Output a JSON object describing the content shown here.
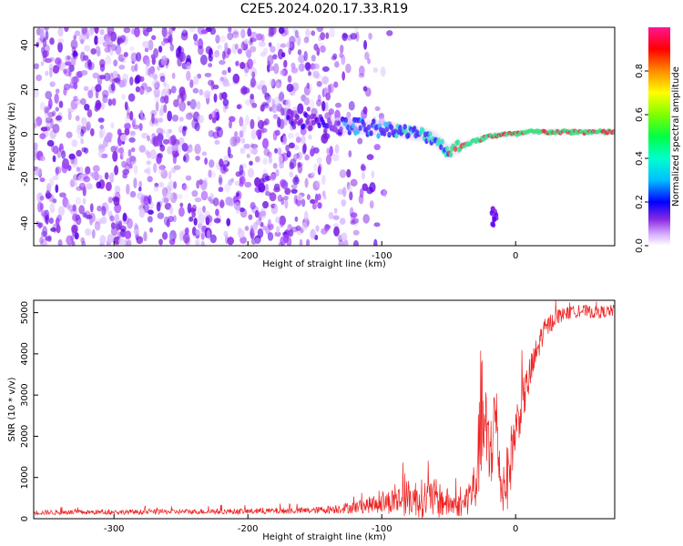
{
  "chart_data": [
    {
      "type": "heatmap",
      "title": "C2E5.2024.020.17.33.R19",
      "xlabel": "Height of straight line (km)",
      "ylabel": "Frequency (Hz)",
      "xlim": [
        -360,
        74
      ],
      "ylim": [
        -50,
        48
      ],
      "x_ticks": [
        -300,
        -200,
        -100,
        0
      ],
      "y_ticks": [
        -40,
        -20,
        0,
        20,
        40
      ],
      "colorbar": {
        "label": "Normalized spectral amplitude",
        "range": [
          0.0,
          1.0
        ],
        "ticks": [
          0.0,
          0.2,
          0.4,
          0.6,
          0.8
        ],
        "colors": [
          "#ffffff",
          "#d9b3ff",
          "#8a2be2",
          "#5a00ff",
          "#0000ff",
          "#00bfff",
          "#00ff66",
          "#7fff00",
          "#ffff00",
          "#ff8c00",
          "#ff0000",
          "#ff1493"
        ]
      },
      "signal_track": {
        "description": "frequency of dominant tone vs height",
        "x": [
          -170,
          -150,
          -130,
          -110,
          -90,
          -70,
          -60,
          -50,
          -45,
          -40,
          -30,
          -20,
          -10,
          0,
          10,
          30,
          50,
          74
        ],
        "y": [
          7,
          5,
          4,
          3,
          2,
          0,
          -2,
          -8,
          -6,
          -5,
          -3,
          -1,
          0,
          0,
          1,
          1,
          1,
          1
        ]
      },
      "noise_region": {
        "x_from": -360,
        "x_to": -120,
        "y_from": -50,
        "y_to": 48
      },
      "isolated_blob": {
        "x": -16,
        "y": -38
      }
    },
    {
      "type": "line",
      "xlabel": "Height of straight line (km)",
      "ylabel": "SNR (10 * v/v)",
      "xlim": [
        -360,
        74
      ],
      "ylim": [
        0,
        5300
      ],
      "x_ticks": [
        -300,
        -200,
        -100,
        0
      ],
      "y_ticks": [
        0,
        1000,
        2000,
        3000,
        4000,
        5000
      ],
      "series": [
        {
          "name": "SNR",
          "color": "#ee2222",
          "envelope_x": [
            -360,
            -300,
            -250,
            -200,
            -150,
            -120,
            -100,
            -80,
            -60,
            -50,
            -40,
            -30,
            -25,
            -20,
            -15,
            -10,
            -5,
            0,
            10,
            20,
            30,
            40,
            50,
            60,
            74
          ],
          "envelope_mean": [
            150,
            160,
            170,
            180,
            200,
            280,
            380,
            500,
            480,
            380,
            300,
            800,
            2500,
            1500,
            2500,
            500,
            1200,
            2200,
            3400,
            4500,
            4900,
            5000,
            5050,
            5000,
            5050
          ],
          "envelope_spread": [
            60,
            60,
            60,
            70,
            80,
            150,
            250,
            450,
            500,
            350,
            250,
            700,
            1500,
            1200,
            1200,
            500,
            900,
            600,
            500,
            300,
            200,
            150,
            150,
            150,
            150
          ]
        }
      ]
    }
  ]
}
